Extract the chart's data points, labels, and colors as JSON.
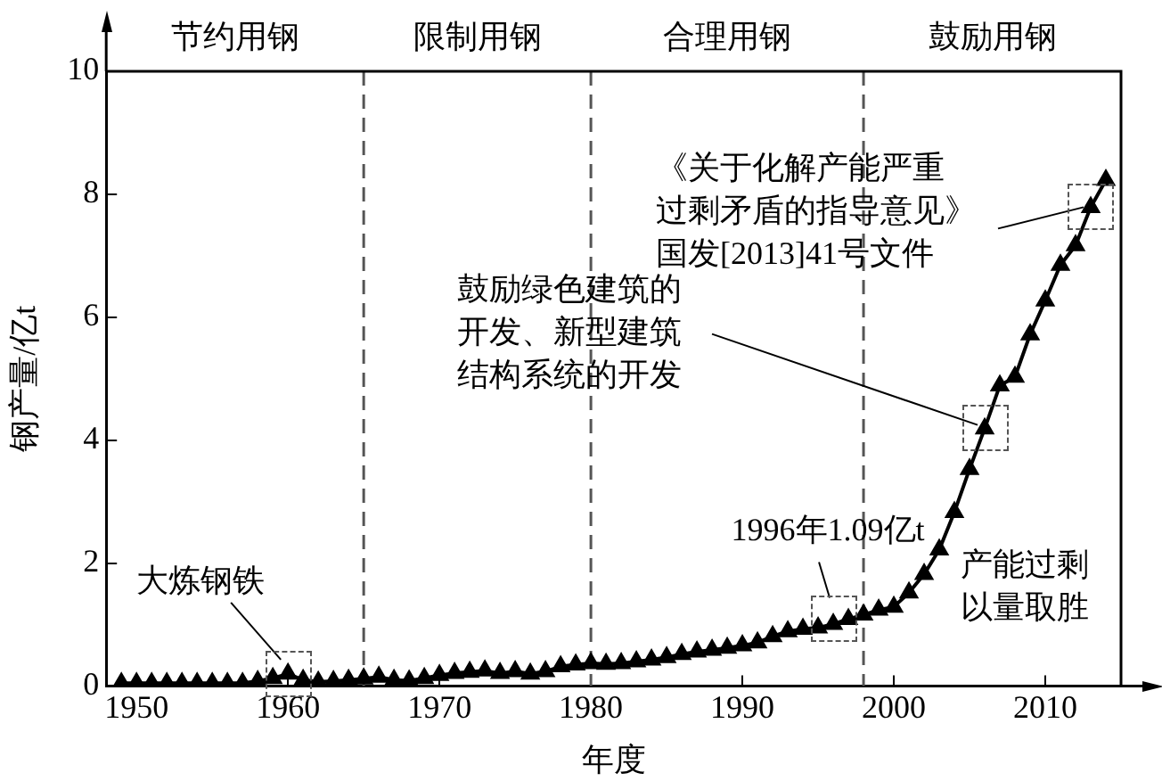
{
  "chart_data": {
    "type": "line",
    "xlabel": "年度",
    "ylabel": "钢产量/亿t",
    "x": [
      1949,
      1950,
      1951,
      1952,
      1953,
      1954,
      1955,
      1956,
      1957,
      1958,
      1959,
      1960,
      1961,
      1962,
      1963,
      1964,
      1965,
      1966,
      1967,
      1968,
      1969,
      1970,
      1971,
      1972,
      1973,
      1974,
      1975,
      1976,
      1977,
      1978,
      1979,
      1980,
      1981,
      1982,
      1983,
      1984,
      1985,
      1986,
      1987,
      1988,
      1989,
      1990,
      1991,
      1992,
      1993,
      1994,
      1995,
      1996,
      1997,
      1998,
      1999,
      2000,
      2001,
      2002,
      2003,
      2004,
      2005,
      2006,
      2007,
      2008,
      2009,
      2010,
      2011,
      2012,
      2013,
      2014
    ],
    "series": [
      {
        "color": "#000000",
        "values": [
          0.05,
          0.05,
          0.05,
          0.05,
          0.05,
          0.05,
          0.05,
          0.05,
          0.05,
          0.08,
          0.13,
          0.2,
          0.1,
          0.07,
          0.08,
          0.1,
          0.12,
          0.15,
          0.1,
          0.09,
          0.13,
          0.18,
          0.21,
          0.23,
          0.25,
          0.21,
          0.24,
          0.2,
          0.24,
          0.32,
          0.35,
          0.37,
          0.36,
          0.37,
          0.4,
          0.43,
          0.47,
          0.52,
          0.56,
          0.59,
          0.62,
          0.66,
          0.71,
          0.81,
          0.89,
          0.93,
          0.95,
          1.01,
          1.09,
          1.16,
          1.24,
          1.29,
          1.52,
          1.82,
          2.22,
          2.83,
          3.53,
          4.19,
          4.89,
          5.03,
          5.72,
          6.27,
          6.85,
          7.17,
          7.79,
          8.23
        ]
      }
    ],
    "xlim": [
      1948,
      2015
    ],
    "xticks": [
      1950,
      1960,
      1970,
      1980,
      1990,
      2000,
      2010
    ],
    "ylim": [
      0,
      10
    ],
    "yticks": [
      0,
      2,
      4,
      6,
      8,
      10
    ],
    "grid": false,
    "legend": false,
    "marker": "triangle",
    "line_style": "solid",
    "ref_lines": [
      {
        "axis": "x",
        "value": 1965,
        "color": "#555555",
        "line_style": "dashed"
      },
      {
        "axis": "x",
        "value": 1980,
        "color": "#555555",
        "line_style": "dashed"
      },
      {
        "axis": "x",
        "value": 1998,
        "color": "#555555",
        "line_style": "dashed"
      }
    ],
    "annotations": [
      "节约用钢",
      "限制用钢",
      "合理用钢",
      "鼓励用钢",
      {
        "text": "大炼钢铁",
        "x": 1960,
        "y": 0.2
      },
      {
        "text": "1996年1.09亿t",
        "x": 1996,
        "y": 1.09
      },
      {
        "text": "鼓励绿色建筑的开发、新型建筑结构系统的开发",
        "x": 2006,
        "y": 4.19
      },
      {
        "text": "《关于化解产能严重过剩矛盾的指导意见》国发[2013]41号文件",
        "x": 2013,
        "y": 7.79
      },
      "产能过剩以量取胜"
    ]
  }
}
